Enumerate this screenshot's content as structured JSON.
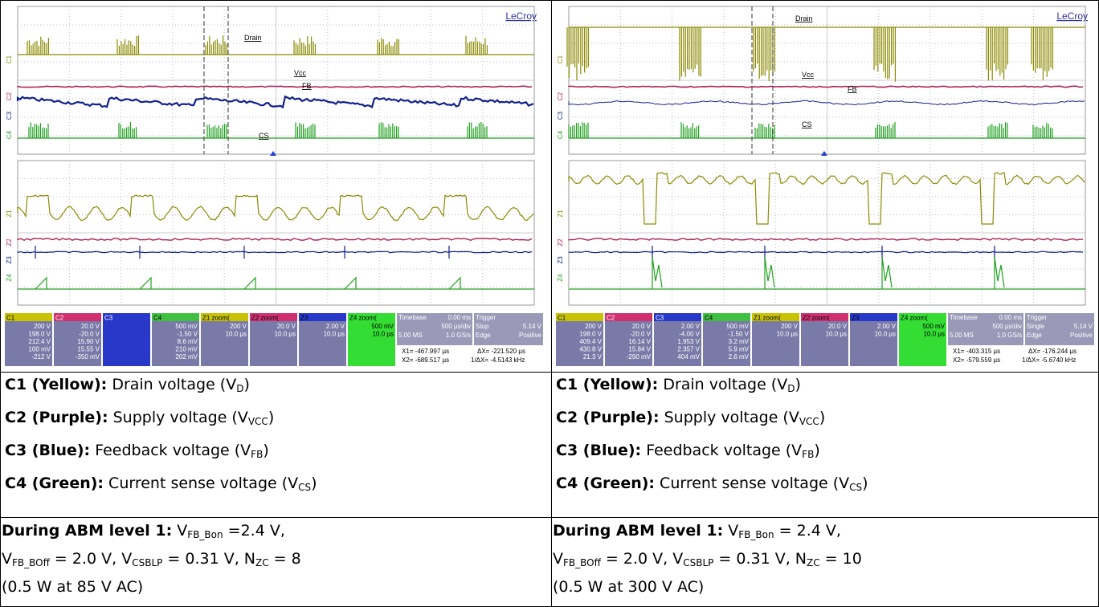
{
  "scopes": [
    {
      "brand": "LeCroy",
      "labels": [
        "Drain",
        "Vcc",
        "FB",
        "CS"
      ],
      "channels": [
        "C1",
        "C2",
        "C3",
        "C4"
      ],
      "zooms": [
        "Z1",
        "Z2",
        "Z3",
        "Z4"
      ],
      "panels": [
        {
          "name": "C1",
          "lines": [
            "200 V",
            "198.0 V",
            "212.4 V",
            "100 mV",
            "-212 V"
          ]
        },
        {
          "name": "C2",
          "lines": [
            "20.0 V",
            "-20.0 V",
            "15.90 V",
            "15.55 V",
            "-350 mV"
          ]
        },
        {
          "name": "C3",
          "lines": []
        },
        {
          "name": "C4",
          "lines": [
            "500 mV",
            "-1.50 V",
            "8.6 mV",
            "210 mV",
            "202 mV"
          ]
        },
        {
          "name": "Z1 zoom(",
          "lines": [
            "200 V",
            "10.0 µs"
          ]
        },
        {
          "name": "Z2 zoom(",
          "lines": [
            "20.0 V",
            "10.0 µs"
          ]
        },
        {
          "name": "Z3",
          "lines": [
            "2.00 V",
            "10.0 µs"
          ]
        },
        {
          "name": "Z4 zoom(",
          "lines": [
            "500 mV",
            "10.0 µs"
          ]
        }
      ],
      "timebase": [
        "Timebase",
        "0.00 ms",
        "500 µs/div",
        "5.00 MS",
        "1.0 GS/s"
      ],
      "trigger": [
        "Trigger",
        "Stop",
        "5.14 V",
        "Edge",
        "Positive"
      ],
      "cursors": [
        "X1= -467.997 µs",
        "ΔX= -221.520 µs",
        "X2= -689.517 µs",
        "1/ΔX= -4.5143 kHz"
      ]
    },
    {
      "brand": "LeCroy",
      "labels": [
        "Drain",
        "Vcc",
        "FB",
        "CS"
      ],
      "channels": [
        "C1",
        "C2",
        "C3",
        "C4"
      ],
      "zooms": [
        "Z1",
        "Z2",
        "Z3",
        "Z4"
      ],
      "panels": [
        {
          "name": "C1",
          "lines": [
            "200 V",
            "198.0 V",
            "409.4 V",
            "430.8 V",
            "21.3 V"
          ]
        },
        {
          "name": "C2",
          "lines": [
            "20.0 V",
            "-20.0 V",
            "16.14 V",
            "15.84 V",
            "-290 mV"
          ]
        },
        {
          "name": "C3",
          "lines": [
            "2.00 V",
            "-4.00 V",
            "1.953 V",
            "2.357 V",
            "404 mV"
          ]
        },
        {
          "name": "C4",
          "lines": [
            "500 mV",
            "-1.50 V",
            "3.2 mV",
            "5.9 mV",
            "2.6 mV"
          ]
        },
        {
          "name": "Z1 zoom(",
          "lines": [
            "200 V",
            "10.0 µs"
          ]
        },
        {
          "name": "Z2 zoom(",
          "lines": [
            "20.0 V",
            "10.0 µs"
          ]
        },
        {
          "name": "Z3",
          "lines": [
            "2.00 V",
            "10.0 µs"
          ]
        },
        {
          "name": "Z4 zoom(",
          "lines": [
            "500 mV",
            "10.0 µs"
          ]
        }
      ],
      "timebase": [
        "Timebase",
        "0.00 ms",
        "500 µs/div",
        "5.00 MS",
        "1.0 GS/s"
      ],
      "trigger": [
        "Trigger",
        "Single",
        "5.14 V",
        "Edge",
        "Positive"
      ],
      "cursors": [
        "X1= -403.315 µs",
        "ΔX= -176.244 µs",
        "X2= -579.559 µs",
        "1/ΔX= -5.6740 kHz"
      ]
    }
  ],
  "descriptions": [
    [
      [
        {
          "b": "C1 (Yellow):"
        },
        {
          "t": " Drain voltage (V"
        },
        {
          "sub": "D"
        },
        {
          "t": ")"
        }
      ],
      [
        {
          "b": "C2 (Purple):"
        },
        {
          "t": " Supply voltage (V"
        },
        {
          "sub": "VCC"
        },
        {
          "t": ")"
        }
      ],
      [
        {
          "b": "C3 (Blue):"
        },
        {
          "t": " Feedback voltage (V"
        },
        {
          "sub": "FB"
        },
        {
          "t": ")"
        }
      ],
      [
        {
          "b": "C4 (Green):"
        },
        {
          "t": " Current sense voltage (V"
        },
        {
          "sub": "CS"
        },
        {
          "t": ")"
        }
      ]
    ],
    [
      [
        {
          "b": "C1 (Yellow):"
        },
        {
          "t": " Drain voltage (V"
        },
        {
          "sub": "D"
        },
        {
          "t": ")"
        }
      ],
      [
        {
          "b": "C2 (Purple):"
        },
        {
          "t": " Supply voltage (V"
        },
        {
          "sub": "VCC"
        },
        {
          "t": ")"
        }
      ],
      [
        {
          "b": "C3 (Blue):"
        },
        {
          "t": " Feedback voltage (V"
        },
        {
          "sub": "FB"
        },
        {
          "t": ")"
        }
      ],
      [
        {
          "b": "C4 (Green):"
        },
        {
          "t": " Current sense voltage (V"
        },
        {
          "sub": "CS"
        },
        {
          "t": ")"
        }
      ]
    ]
  ],
  "abm": [
    [
      [
        {
          "b": "During ABM level 1:"
        },
        {
          "t": " V"
        },
        {
          "sub": "FB_Bon"
        },
        {
          "t": " =2.4 V,"
        }
      ],
      [
        {
          "t": "V"
        },
        {
          "sub": "FB_BOff"
        },
        {
          "t": " = 2.0 V, V"
        },
        {
          "sub": "CSBLP"
        },
        {
          "t": " = 0.31 V, N"
        },
        {
          "sub": "ZC"
        },
        {
          "t": " = 8"
        }
      ],
      [
        {
          "t": "(0.5 W at 85 V AC)"
        }
      ]
    ],
    [
      [
        {
          "b": "During ABM level 1:"
        },
        {
          "t": " V"
        },
        {
          "sub": "FB_Bon"
        },
        {
          "t": " = 2.4 V,"
        }
      ],
      [
        {
          "t": "V"
        },
        {
          "sub": "FB_BOff"
        },
        {
          "t": " = 2.0 V, V"
        },
        {
          "sub": "CSBLP"
        },
        {
          "t": " = 0.31 V, N"
        },
        {
          "sub": "ZC"
        },
        {
          "t": " = 10"
        }
      ],
      [
        {
          "t": "(0.5 W at 300 V AC)"
        }
      ]
    ]
  ]
}
